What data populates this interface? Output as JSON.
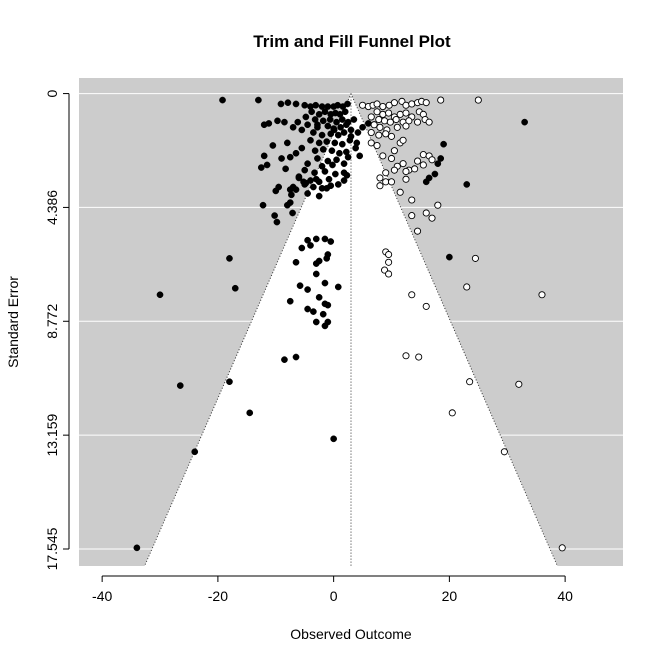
{
  "chart_data": {
    "type": "scatter",
    "title": "Trim and Fill Funnel Plot",
    "xlabel": "Observed Outcome",
    "ylabel": "Standard Error",
    "xlim": [
      -44,
      50
    ],
    "ylim": [
      18.2,
      -0.6
    ],
    "y_reversed": true,
    "x_ticks": [
      -40,
      -20,
      0,
      20,
      40
    ],
    "x_tick_labels": [
      "-40",
      "-20",
      "0",
      "20",
      "40"
    ],
    "y_ticks": [
      0,
      4.386,
      8.772,
      13.159,
      17.545
    ],
    "y_tick_labels": [
      "0",
      "4.386",
      "8.772",
      "13.159",
      "17.545"
    ],
    "center_estimate": 3.0,
    "funnel_multiplier": 1.96,
    "funnel_max_se": 18.2,
    "region_color": "#cccccc",
    "inner_color": "#ffffff",
    "grid": true,
    "series": [
      {
        "style": "filled",
        "points": [
          [
            -19.2,
            0.25
          ],
          [
            -13.0,
            0.25
          ],
          [
            -9.1,
            0.4
          ],
          [
            -7.9,
            0.35
          ],
          [
            -6.5,
            0.4
          ],
          [
            -5.0,
            0.45
          ],
          [
            -4.0,
            0.5
          ],
          [
            -3.1,
            0.45
          ],
          [
            -2.0,
            0.5
          ],
          [
            -1.0,
            0.5
          ],
          [
            0.0,
            0.5
          ],
          [
            0.7,
            0.45
          ],
          [
            1.6,
            0.5
          ],
          [
            2.4,
            0.4
          ],
          [
            -3.8,
            0.7
          ],
          [
            -2.5,
            0.8
          ],
          [
            -1.5,
            0.7
          ],
          [
            -0.5,
            0.8
          ],
          [
            0.3,
            0.75
          ],
          [
            1.1,
            0.8
          ],
          [
            2.0,
            0.7
          ],
          [
            -4.8,
            0.9
          ],
          [
            -3.2,
            1.0
          ],
          [
            -1.8,
            1.05
          ],
          [
            -0.6,
            1.0
          ],
          [
            0.5,
            1.1
          ],
          [
            1.5,
            1.0
          ],
          [
            2.5,
            1.1
          ],
          [
            3.5,
            1.0
          ],
          [
            -6.2,
            1.1
          ],
          [
            -4.5,
            1.2
          ],
          [
            -2.8,
            1.3
          ],
          [
            -1.0,
            1.25
          ],
          [
            0.0,
            1.35
          ],
          [
            1.2,
            1.3
          ],
          [
            2.2,
            1.2
          ],
          [
            3.0,
            1.4
          ],
          [
            -8.5,
            1.1
          ],
          [
            -9.7,
            1.05
          ],
          [
            -11.2,
            1.15
          ],
          [
            -12.0,
            1.2
          ],
          [
            -7.0,
            1.3
          ],
          [
            -5.5,
            1.4
          ],
          [
            -3.5,
            1.5
          ],
          [
            -2.0,
            1.6
          ],
          [
            -0.5,
            1.55
          ],
          [
            0.8,
            1.6
          ],
          [
            1.8,
            1.5
          ],
          [
            3.0,
            1.65
          ],
          [
            4.2,
            1.5
          ],
          [
            5.0,
            1.3
          ],
          [
            6.0,
            1.15
          ],
          [
            -4.0,
            1.8
          ],
          [
            -2.5,
            1.9
          ],
          [
            -1.2,
            1.85
          ],
          [
            0.2,
            1.9
          ],
          [
            1.5,
            1.95
          ],
          [
            2.8,
            1.8
          ],
          [
            4.0,
            1.9
          ],
          [
            -5.5,
            2.1
          ],
          [
            -3.2,
            2.2
          ],
          [
            -1.8,
            2.15
          ],
          [
            -0.3,
            2.2
          ],
          [
            1.0,
            2.3
          ],
          [
            2.2,
            2.25
          ],
          [
            3.8,
            2.1
          ],
          [
            -8.0,
            1.9
          ],
          [
            -10.5,
            2.0
          ],
          [
            -6.5,
            2.3
          ],
          [
            -2.8,
            2.5
          ],
          [
            -1.0,
            2.6
          ],
          [
            0.5,
            2.55
          ],
          [
            2.5,
            2.45
          ],
          [
            4.5,
            2.4
          ],
          [
            -4.5,
            2.7
          ],
          [
            -2.0,
            2.8
          ],
          [
            -0.2,
            2.75
          ],
          [
            1.8,
            2.7
          ],
          [
            -7.5,
            2.45
          ],
          [
            -9.0,
            2.5
          ],
          [
            -12.0,
            2.4
          ],
          [
            -11.5,
            2.75
          ],
          [
            -12.5,
            2.85
          ],
          [
            -8.3,
            2.9
          ],
          [
            -5.0,
            2.95
          ],
          [
            -3.3,
            3.05
          ],
          [
            -1.5,
            3.0
          ],
          [
            0.3,
            3.1
          ],
          [
            1.8,
            3.05
          ],
          [
            2.3,
            3.15
          ],
          [
            -6.0,
            3.25
          ],
          [
            -4.0,
            3.35
          ],
          [
            -2.5,
            3.4
          ],
          [
            -9.5,
            3.6
          ],
          [
            -10.0,
            3.75
          ],
          [
            -7.5,
            3.7
          ],
          [
            -5.0,
            3.5
          ],
          [
            -3.5,
            3.6
          ],
          [
            -2.0,
            3.65
          ],
          [
            -0.5,
            3.55
          ],
          [
            0.8,
            3.5
          ],
          [
            1.8,
            3.35
          ],
          [
            -5.2,
            3.4
          ],
          [
            -4.8,
            3.45
          ],
          [
            -3.0,
            3.3
          ],
          [
            -0.8,
            3.3
          ],
          [
            -6.5,
            3.7
          ],
          [
            -7.0,
            3.6
          ],
          [
            -6.0,
            3.2
          ],
          [
            -4.5,
            3.85
          ],
          [
            -2.5,
            3.95
          ],
          [
            -1.2,
            3.65
          ],
          [
            19.0,
            1.95
          ],
          [
            18.5,
            2.5
          ],
          [
            18.0,
            2.7
          ],
          [
            17.5,
            3.1
          ],
          [
            16.5,
            3.25
          ],
          [
            16.0,
            3.4
          ],
          [
            23.0,
            3.5
          ],
          [
            33.0,
            1.1
          ],
          [
            -7.3,
            3.9
          ],
          [
            -7.5,
            4.2
          ],
          [
            -8.0,
            4.3
          ],
          [
            -9.8,
            4.95
          ],
          [
            -7.1,
            4.6
          ],
          [
            -12.2,
            4.3
          ],
          [
            -10.2,
            4.7
          ],
          [
            -1.5,
            5.6
          ],
          [
            -3.0,
            5.6
          ],
          [
            -4.5,
            5.65
          ],
          [
            -0.5,
            5.7
          ],
          [
            -4.0,
            5.85
          ],
          [
            -5.5,
            5.95
          ],
          [
            -1.0,
            6.2
          ],
          [
            -1.2,
            6.35
          ],
          [
            -2.5,
            6.45
          ],
          [
            -3.0,
            6.55
          ],
          [
            -6.5,
            6.5
          ],
          [
            -3.0,
            6.95
          ],
          [
            -1.5,
            7.3
          ],
          [
            0.8,
            7.45
          ],
          [
            -4.5,
            7.55
          ],
          [
            -5.8,
            7.4
          ],
          [
            -1.5,
            8.1
          ],
          [
            -2.5,
            7.85
          ],
          [
            -1.0,
            8.15
          ],
          [
            -7.5,
            8.0
          ],
          [
            -4.5,
            8.3
          ],
          [
            -3.5,
            8.4
          ],
          [
            -1.8,
            8.5
          ],
          [
            -3.0,
            8.8
          ],
          [
            -1.5,
            8.95
          ],
          [
            -1.0,
            8.8
          ],
          [
            -18.0,
            6.35
          ],
          [
            -30.0,
            7.75
          ],
          [
            -17.0,
            7.5
          ],
          [
            -8.5,
            10.25
          ],
          [
            -6.5,
            10.15
          ],
          [
            -26.5,
            11.25
          ],
          [
            -18.0,
            11.1
          ],
          [
            -14.5,
            12.3
          ],
          [
            0.0,
            13.3
          ],
          [
            -24.0,
            13.8
          ],
          [
            -34.0,
            17.5
          ],
          [
            20.0,
            6.3
          ],
          [
            -2.8,
            1.2
          ],
          [
            0.1,
            1.4
          ]
        ]
      },
      {
        "style": "hollow",
        "points": [
          [
            5.0,
            0.45
          ],
          [
            6.0,
            0.5
          ],
          [
            6.8,
            0.45
          ],
          [
            7.5,
            0.4
          ],
          [
            8.5,
            0.5
          ],
          [
            9.6,
            0.45
          ],
          [
            10.5,
            0.35
          ],
          [
            11.8,
            0.3
          ],
          [
            12.5,
            0.45
          ],
          [
            13.5,
            0.4
          ],
          [
            14.5,
            0.35
          ],
          [
            15.2,
            0.3
          ],
          [
            16.0,
            0.35
          ],
          [
            18.5,
            0.25
          ],
          [
            25.0,
            0.25
          ],
          [
            7.5,
            0.7
          ],
          [
            8.5,
            0.8
          ],
          [
            9.5,
            0.75
          ],
          [
            10.5,
            0.9
          ],
          [
            11.5,
            0.8
          ],
          [
            12.5,
            0.75
          ],
          [
            13.5,
            0.9
          ],
          [
            14.8,
            0.7
          ],
          [
            15.5,
            0.8
          ],
          [
            6.5,
            0.9
          ],
          [
            7.8,
            1.0
          ],
          [
            8.8,
            1.05
          ],
          [
            9.8,
            1.1
          ],
          [
            10.8,
            1.0
          ],
          [
            12.0,
            1.1
          ],
          [
            13.0,
            1.05
          ],
          [
            14.5,
            1.1
          ],
          [
            15.8,
            1.0
          ],
          [
            16.5,
            1.1
          ],
          [
            7.0,
            1.2
          ],
          [
            8.0,
            1.3
          ],
          [
            9.2,
            1.4
          ],
          [
            11.0,
            1.3
          ],
          [
            12.5,
            1.25
          ],
          [
            6.5,
            1.5
          ],
          [
            7.8,
            1.6
          ],
          [
            9.0,
            1.55
          ],
          [
            10.0,
            1.65
          ],
          [
            11.5,
            1.9
          ],
          [
            12.0,
            1.8
          ],
          [
            6.5,
            1.9
          ],
          [
            7.5,
            2.0
          ],
          [
            10.5,
            2.2
          ],
          [
            8.5,
            2.4
          ],
          [
            10.0,
            2.5
          ],
          [
            12.0,
            2.7
          ],
          [
            13.0,
            2.95
          ],
          [
            15.5,
            2.35
          ],
          [
            16.5,
            2.4
          ],
          [
            14.5,
            2.6
          ],
          [
            15.5,
            2.75
          ],
          [
            11.0,
            2.8
          ],
          [
            10.5,
            2.95
          ],
          [
            12.5,
            3.0
          ],
          [
            17.0,
            2.55
          ],
          [
            14.0,
            2.9
          ],
          [
            9.0,
            3.05
          ],
          [
            8.0,
            3.25
          ],
          [
            9.0,
            3.4
          ],
          [
            8.0,
            3.55
          ],
          [
            10.0,
            3.4
          ],
          [
            12.5,
            3.3
          ],
          [
            11.5,
            3.8
          ],
          [
            13.5,
            4.1
          ],
          [
            16.0,
            4.6
          ],
          [
            18.0,
            4.3
          ],
          [
            17.0,
            4.8
          ],
          [
            13.5,
            4.7
          ],
          [
            14.5,
            5.3
          ],
          [
            9.0,
            6.1
          ],
          [
            9.5,
            6.2
          ],
          [
            9.5,
            6.5
          ],
          [
            8.8,
            6.8
          ],
          [
            9.5,
            6.95
          ],
          [
            24.5,
            6.35
          ],
          [
            23.0,
            7.45
          ],
          [
            13.5,
            7.75
          ],
          [
            16.0,
            8.2
          ],
          [
            36.0,
            7.75
          ],
          [
            12.5,
            10.1
          ],
          [
            14.7,
            10.15
          ],
          [
            23.5,
            11.1
          ],
          [
            32.0,
            11.2
          ],
          [
            20.5,
            12.3
          ],
          [
            29.5,
            13.8
          ],
          [
            39.5,
            17.5
          ]
        ]
      }
    ]
  }
}
